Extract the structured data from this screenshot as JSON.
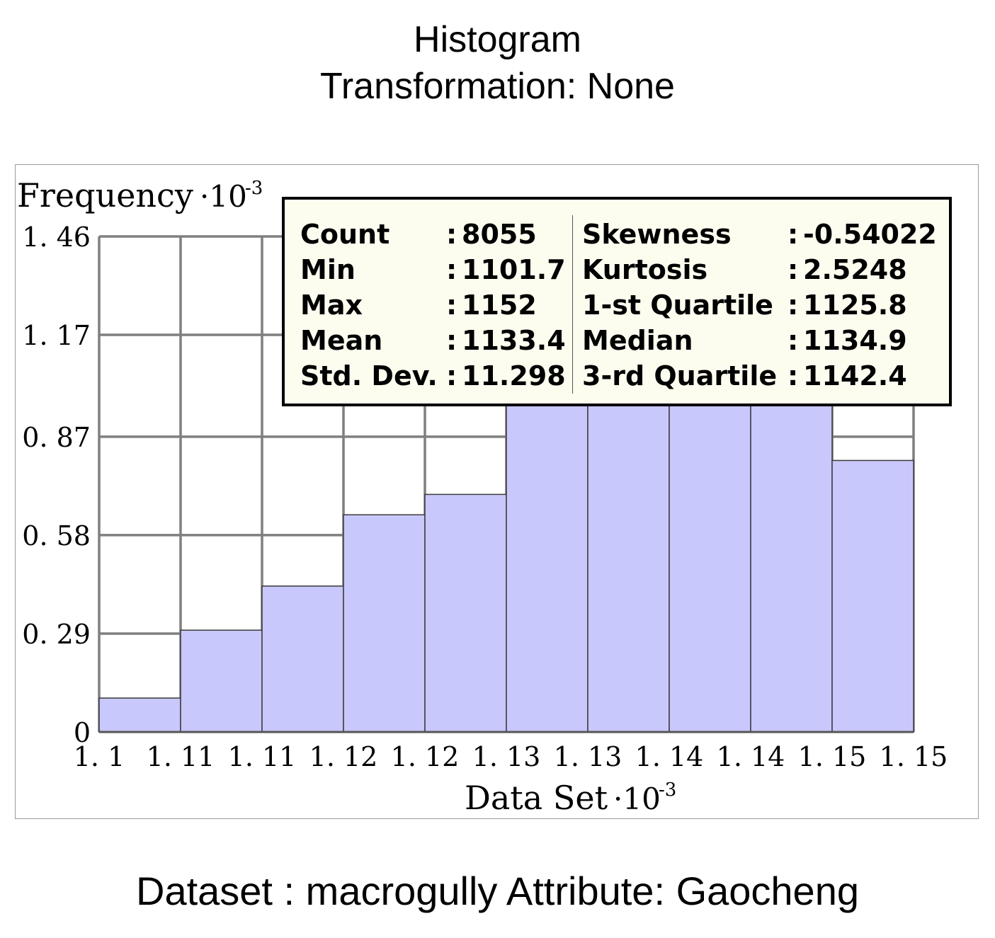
{
  "header": {
    "title": "Histogram",
    "subtitle": "Transformation: None"
  },
  "footer": {
    "text": "Dataset : macrogully Attribute: Gaocheng"
  },
  "stats": {
    "left": [
      {
        "label": "Count",
        "value": "8055"
      },
      {
        "label": "Min",
        "value": "1101.7"
      },
      {
        "label": "Max",
        "value": "1152"
      },
      {
        "label": "Mean",
        "value": "1133.4"
      },
      {
        "label": "Std. Dev.",
        "value": "11.298"
      }
    ],
    "right": [
      {
        "label": "Skewness",
        "value": "-0.54022"
      },
      {
        "label": "Kurtosis",
        "value": "2.5248"
      },
      {
        "label": "1-st Quartile",
        "value": "1125.8"
      },
      {
        "label": "Median",
        "value": "1134.9"
      },
      {
        "label": "3-rd Quartile",
        "value": "1142.4"
      }
    ]
  },
  "chart_data": {
    "type": "bar",
    "title": "Histogram",
    "subtitle": "Transformation: None",
    "xlabel": "Data Set",
    "xlabel_exponent": "-3",
    "ylabel": "Frequency",
    "ylabel_exponent": "-3",
    "x_tick_labels": [
      "1. 1",
      "1. 11",
      "1. 11",
      "1. 12",
      "1. 12",
      "1. 13",
      "1. 13",
      "1. 14",
      "1. 14",
      "1. 15",
      "1. 15"
    ],
    "y_tick_labels": [
      "0",
      "0. 29",
      "0. 58",
      "0. 87",
      "1. 17",
      "1. 46"
    ],
    "y_ticks": [
      0,
      0.29,
      0.58,
      0.87,
      1.17,
      1.46
    ],
    "ylim": [
      0,
      1.46
    ],
    "bin_edges": [
      1101.7,
      1106.73,
      1111.76,
      1116.79,
      1121.82,
      1126.85,
      1131.88,
      1136.91,
      1141.94,
      1146.97,
      1152
    ],
    "values": [
      0.1,
      0.3,
      0.43,
      0.64,
      0.7,
      1.33,
      1.46,
      1.36,
      1.31,
      0.8
    ],
    "bar_color": "#c8c8fc",
    "bar_edge_color": "#3a3a3a",
    "grid_color": "#7f7f7f",
    "grid": true
  }
}
